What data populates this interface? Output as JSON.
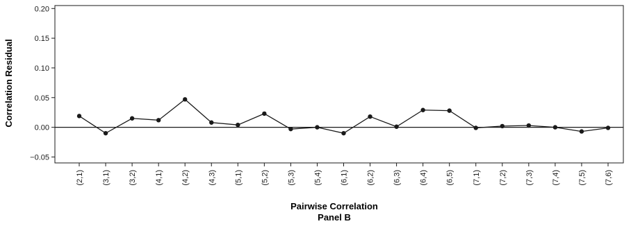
{
  "chart_data": {
    "type": "line",
    "title": "",
    "xlabel": "Pairwise Correlation",
    "panel_label": "Panel B",
    "ylabel": "Correlation Residual",
    "ylim": [
      -0.06,
      0.205
    ],
    "yticks": [
      "0.20",
      "0.15",
      "0.10",
      "0.05",
      "0.00",
      "−0.05"
    ],
    "ytick_values": [
      0.2,
      0.15,
      0.1,
      0.05,
      0.0,
      -0.05
    ],
    "reference_line": 0.0,
    "grid": false,
    "legend": "none",
    "line_color": "#1a1a1a",
    "categories": [
      "(2,1)",
      "(3,1)",
      "(3,2)",
      "(4,1)",
      "(4,2)",
      "(4,3)",
      "(5,1)",
      "(5,2)",
      "(5,3)",
      "(5,4)",
      "(6,1)",
      "(6,2)",
      "(6,3)",
      "(6,4)",
      "(6,5)",
      "(7,1)",
      "(7,2)",
      "(7,3)",
      "(7,4)",
      "(7,5)",
      "(7,6)"
    ],
    "series": [
      {
        "values": [
          0.019,
          -0.01,
          0.015,
          0.012,
          0.047,
          0.008,
          0.004,
          0.023,
          -0.003,
          0.0,
          -0.01,
          0.018,
          0.001,
          0.029,
          0.028,
          -0.001,
          0.002,
          0.003,
          0.0,
          -0.007,
          -0.001
        ]
      }
    ]
  }
}
